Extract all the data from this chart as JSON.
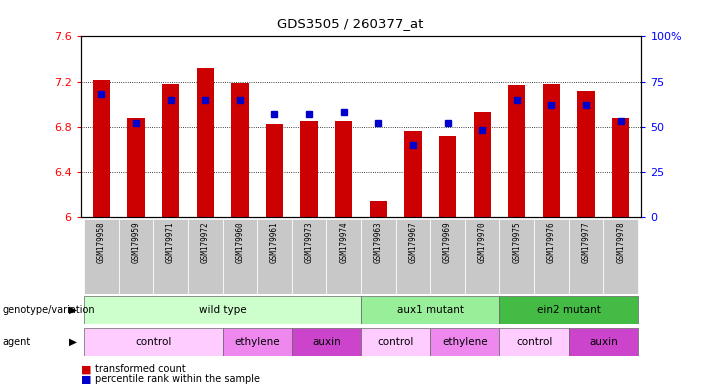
{
  "title": "GDS3505 / 260377_at",
  "samples": [
    "GSM179958",
    "GSM179959",
    "GSM179971",
    "GSM179972",
    "GSM179960",
    "GSM179961",
    "GSM179973",
    "GSM179974",
    "GSM179963",
    "GSM179967",
    "GSM179969",
    "GSM179970",
    "GSM179975",
    "GSM179976",
    "GSM179977",
    "GSM179978"
  ],
  "bar_values": [
    7.21,
    6.88,
    7.18,
    7.32,
    7.19,
    6.82,
    6.85,
    6.85,
    6.14,
    6.76,
    6.72,
    6.93,
    7.17,
    7.18,
    7.12,
    6.88
  ],
  "percentile_values": [
    68,
    52,
    65,
    65,
    65,
    57,
    57,
    58,
    52,
    40,
    52,
    48,
    65,
    62,
    62,
    53
  ],
  "ymin": 6.0,
  "ymax": 7.6,
  "yticks": [
    6.0,
    6.4,
    6.8,
    7.2,
    7.6
  ],
  "ytick_labels": [
    "6",
    "6.4",
    "6.8",
    "7.2",
    "7.6"
  ],
  "right_yticks": [
    0,
    25,
    50,
    75,
    100
  ],
  "right_yticklabels": [
    "0",
    "25",
    "50",
    "75",
    "100%"
  ],
  "bar_color": "#cc0000",
  "percentile_color": "#0000cc",
  "bar_width": 0.5,
  "genotype_groups": [
    {
      "label": "wild type",
      "start": 0,
      "end": 7,
      "color": "#ccffcc"
    },
    {
      "label": "aux1 mutant",
      "start": 8,
      "end": 11,
      "color": "#99ee99"
    },
    {
      "label": "ein2 mutant",
      "start": 12,
      "end": 15,
      "color": "#44bb44"
    }
  ],
  "agent_groups": [
    {
      "label": "control",
      "start": 0,
      "end": 3,
      "color": "#ffccff"
    },
    {
      "label": "ethylene",
      "start": 4,
      "end": 5,
      "color": "#ee88ee"
    },
    {
      "label": "auxin",
      "start": 6,
      "end": 7,
      "color": "#cc44cc"
    },
    {
      "label": "control",
      "start": 8,
      "end": 9,
      "color": "#ffccff"
    },
    {
      "label": "ethylene",
      "start": 10,
      "end": 11,
      "color": "#ee88ee"
    },
    {
      "label": "control",
      "start": 12,
      "end": 13,
      "color": "#ffccff"
    },
    {
      "label": "auxin",
      "start": 14,
      "end": 15,
      "color": "#cc44cc"
    }
  ],
  "legend_bar_color": "#cc0000",
  "legend_percentile_color": "#0000cc"
}
